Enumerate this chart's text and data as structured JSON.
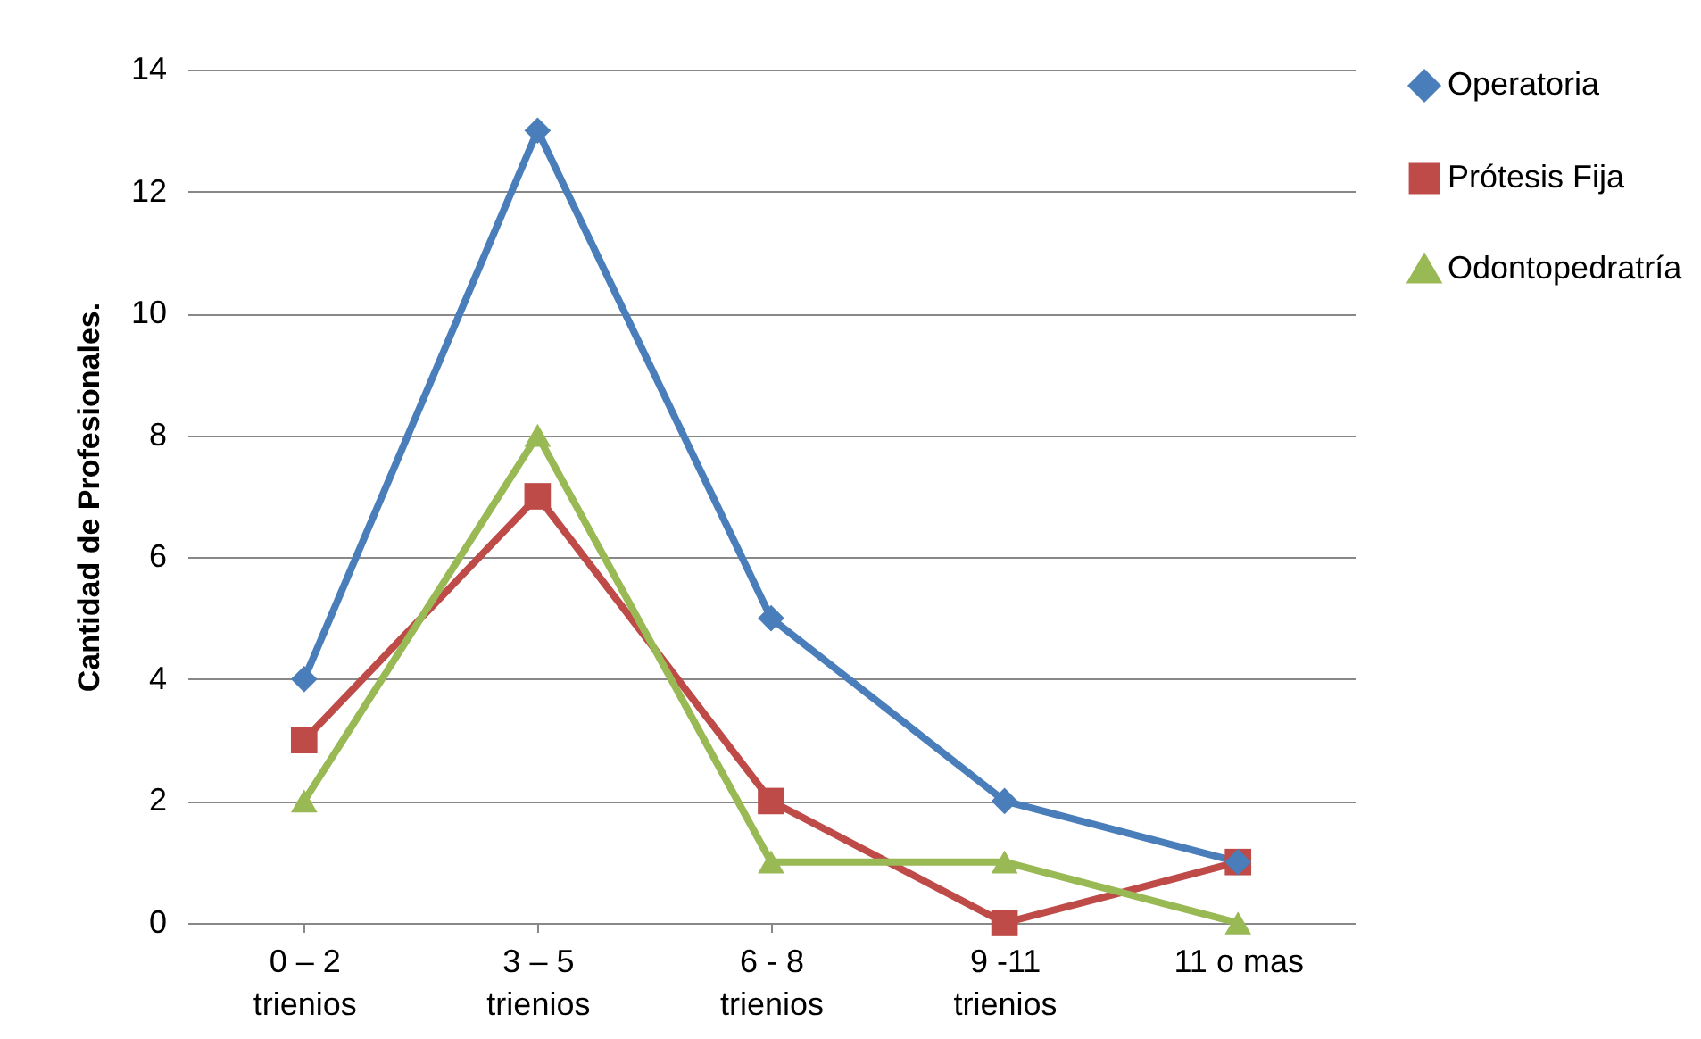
{
  "chart_data": {
    "type": "line",
    "ylabel": "Cantidad de Profesionales.",
    "categories": [
      "0 – 2 trienios",
      "3 – 5 trienios",
      "6 - 8 trienios",
      "9 -11 trienios",
      "11 o mas"
    ],
    "series": [
      {
        "name": "Operatoria",
        "color": "#4a7ebb",
        "marker": "diamond",
        "values": [
          4,
          13,
          5,
          2,
          1
        ]
      },
      {
        "name": "Prótesis Fija",
        "color": "#be4b48",
        "marker": "square",
        "values": [
          3,
          7,
          2,
          0,
          1
        ]
      },
      {
        "name": "Odontopedratría",
        "color": "#98b954",
        "marker": "triangle",
        "values": [
          2,
          8,
          1,
          1,
          0
        ]
      }
    ],
    "ylim": [
      0,
      14
    ],
    "yticks": [
      0,
      2,
      4,
      6,
      8,
      10,
      12,
      14
    ],
    "grid": "y",
    "legend": "right",
    "line_style": "solid"
  }
}
